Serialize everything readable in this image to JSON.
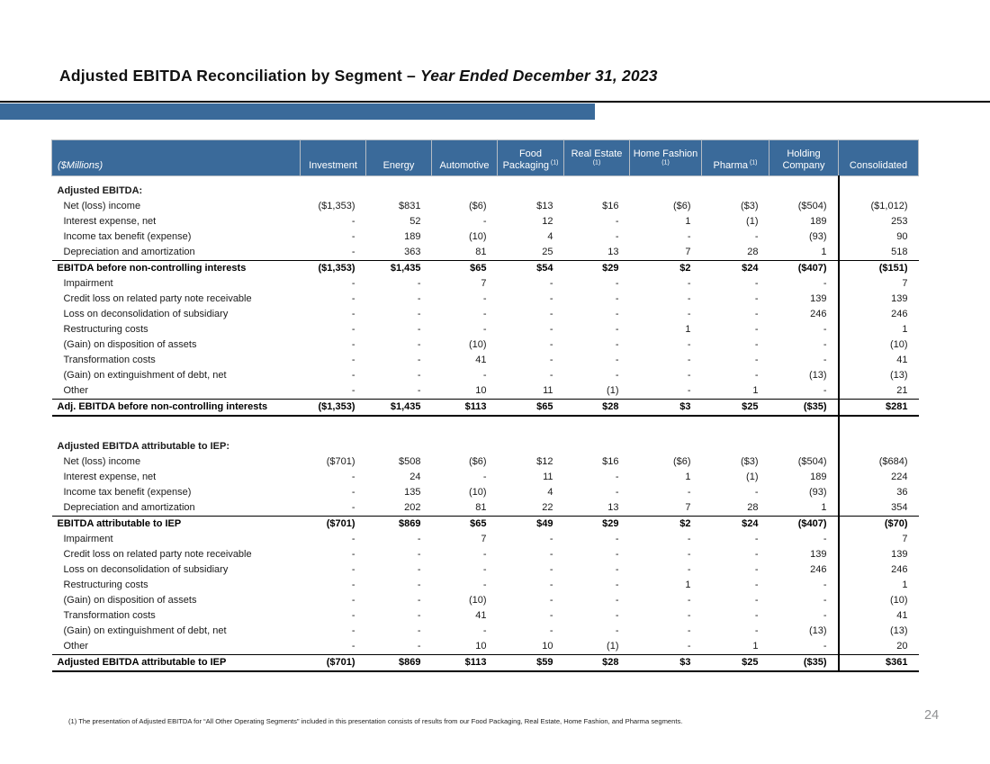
{
  "slide": {
    "title_main": "Adjusted EBITDA Reconciliation by Segment – ",
    "title_italic": "Year Ended December 31, 2023",
    "footnote": "(1) The presentation of Adjusted EBITDA for “All Other Operating Segments” included in this presentation consists of results from our Food Packaging, Real Estate, Home Fashion, and Pharma segments.",
    "page_number": "24"
  },
  "colors": {
    "header_blue": "#3A6A9A",
    "accent_bar_blue": "#3A6A9A",
    "page_number_gray": "#8f9092"
  },
  "table": {
    "unit_label": "($Millions)",
    "columns": [
      {
        "label": "Investment",
        "sup": ""
      },
      {
        "label": "Energy",
        "sup": ""
      },
      {
        "label": "Automotive",
        "sup": ""
      },
      {
        "label": "Food Packaging",
        "sup": "(1)"
      },
      {
        "label": "Real Estate",
        "sup": "(1)"
      },
      {
        "label": "Home Fashion",
        "sup": "(1)"
      },
      {
        "label": "Pharma",
        "sup": "(1)"
      },
      {
        "label": "Holding Company",
        "sup": ""
      },
      {
        "label": "Consolidated",
        "sup": ""
      }
    ],
    "sections": [
      {
        "header": "Adjusted EBITDA:",
        "rows": [
          {
            "label": "Net (loss) income",
            "style": "normal",
            "values": [
              "($1,353)",
              "$831",
              "($6)",
              "$13",
              "$16",
              "($6)",
              "($3)",
              "($504)",
              "($1,012)"
            ]
          },
          {
            "label": "Interest expense, net",
            "style": "normal",
            "values": [
              "-",
              "52",
              "-",
              "12",
              "-",
              "1",
              "(1)",
              "189",
              "253"
            ]
          },
          {
            "label": "Income tax benefit (expense)",
            "style": "normal",
            "values": [
              "-",
              "189",
              "(10)",
              "4",
              "-",
              "-",
              "-",
              "(93)",
              "90"
            ]
          },
          {
            "label": "Depreciation and amortization",
            "style": "normal",
            "values": [
              "-",
              "363",
              "81",
              "25",
              "13",
              "7",
              "28",
              "1",
              "518"
            ]
          },
          {
            "label": "EBITDA before non-controlling interests",
            "style": "subtotal",
            "values": [
              "($1,353)",
              "$1,435",
              "$65",
              "$54",
              "$29",
              "$2",
              "$24",
              "($407)",
              "($151)"
            ]
          },
          {
            "label": "Impairment",
            "style": "normal",
            "values": [
              "-",
              "-",
              "7",
              "-",
              "-",
              "-",
              "-",
              "-",
              "7"
            ]
          },
          {
            "label": "Credit loss on related party note receivable",
            "style": "normal",
            "values": [
              "-",
              "-",
              "-",
              "-",
              "-",
              "-",
              "-",
              "139",
              "139"
            ]
          },
          {
            "label": "Loss on deconsolidation of subsidiary",
            "style": "normal",
            "values": [
              "-",
              "-",
              "-",
              "-",
              "-",
              "-",
              "-",
              "246",
              "246"
            ]
          },
          {
            "label": "Restructuring costs",
            "style": "normal",
            "values": [
              "-",
              "-",
              "-",
              "-",
              "-",
              "1",
              "-",
              "-",
              "1"
            ]
          },
          {
            "label": "(Gain) on disposition of assets",
            "style": "normal",
            "values": [
              "-",
              "-",
              "(10)",
              "-",
              "-",
              "-",
              "-",
              "-",
              "(10)"
            ]
          },
          {
            "label": "Transformation costs",
            "style": "normal",
            "values": [
              "-",
              "-",
              "41",
              "-",
              "-",
              "-",
              "-",
              "-",
              "41"
            ]
          },
          {
            "label": "(Gain) on extinguishment of debt, net",
            "style": "normal",
            "values": [
              "-",
              "-",
              "-",
              "-",
              "-",
              "-",
              "-",
              "(13)",
              "(13)"
            ]
          },
          {
            "label": "Other",
            "style": "normal",
            "values": [
              "-",
              "-",
              "10",
              "11",
              "(1)",
              "-",
              "1",
              "-",
              "21"
            ]
          },
          {
            "label": "Adj. EBITDA before non-controlling interests",
            "style": "total",
            "values": [
              "($1,353)",
              "$1,435",
              "$113",
              "$65",
              "$28",
              "$3",
              "$25",
              "($35)",
              "$281"
            ]
          }
        ]
      },
      {
        "header": "Adjusted EBITDA attributable to IEP:",
        "rows": [
          {
            "label": "Net (loss) income",
            "style": "normal",
            "values": [
              "($701)",
              "$508",
              "($6)",
              "$12",
              "$16",
              "($6)",
              "($3)",
              "($504)",
              "($684)"
            ]
          },
          {
            "label": "Interest expense, net",
            "style": "normal",
            "values": [
              "-",
              "24",
              "-",
              "11",
              "-",
              "1",
              "(1)",
              "189",
              "224"
            ]
          },
          {
            "label": "Income tax benefit (expense)",
            "style": "normal",
            "values": [
              "-",
              "135",
              "(10)",
              "4",
              "-",
              "-",
              "-",
              "(93)",
              "36"
            ]
          },
          {
            "label": "Depreciation and amortization",
            "style": "normal",
            "values": [
              "-",
              "202",
              "81",
              "22",
              "13",
              "7",
              "28",
              "1",
              "354"
            ]
          },
          {
            "label": "EBITDA attributable to IEP",
            "style": "subtotal",
            "values": [
              "($701)",
              "$869",
              "$65",
              "$49",
              "$29",
              "$2",
              "$24",
              "($407)",
              "($70)"
            ]
          },
          {
            "label": "Impairment",
            "style": "normal",
            "values": [
              "-",
              "-",
              "7",
              "-",
              "-",
              "-",
              "-",
              "-",
              "7"
            ]
          },
          {
            "label": "Credit loss on related party note receivable",
            "style": "normal",
            "values": [
              "-",
              "-",
              "-",
              "-",
              "-",
              "-",
              "-",
              "139",
              "139"
            ]
          },
          {
            "label": "Loss on deconsolidation of subsidiary",
            "style": "normal",
            "values": [
              "-",
              "-",
              "-",
              "-",
              "-",
              "-",
              "-",
              "246",
              "246"
            ]
          },
          {
            "label": "Restructuring costs",
            "style": "normal",
            "values": [
              "-",
              "-",
              "-",
              "-",
              "-",
              "1",
              "-",
              "-",
              "1"
            ]
          },
          {
            "label": "(Gain) on disposition of assets",
            "style": "normal",
            "values": [
              "-",
              "-",
              "(10)",
              "-",
              "-",
              "-",
              "-",
              "-",
              "(10)"
            ]
          },
          {
            "label": "Transformation costs",
            "style": "normal",
            "values": [
              "-",
              "-",
              "41",
              "-",
              "-",
              "-",
              "-",
              "-",
              "41"
            ]
          },
          {
            "label": "(Gain) on extinguishment of debt, net",
            "style": "normal",
            "values": [
              "-",
              "-",
              "-",
              "-",
              "-",
              "-",
              "-",
              "(13)",
              "(13)"
            ]
          },
          {
            "label": "Other",
            "style": "normal",
            "values": [
              "-",
              "-",
              "10",
              "10",
              "(1)",
              "-",
              "1",
              "-",
              "20"
            ]
          },
          {
            "label": "Adjusted EBITDA attributable to IEP",
            "style": "total",
            "values": [
              "($701)",
              "$869",
              "$113",
              "$59",
              "$28",
              "$3",
              "$25",
              "($35)",
              "$361"
            ]
          }
        ]
      }
    ]
  }
}
